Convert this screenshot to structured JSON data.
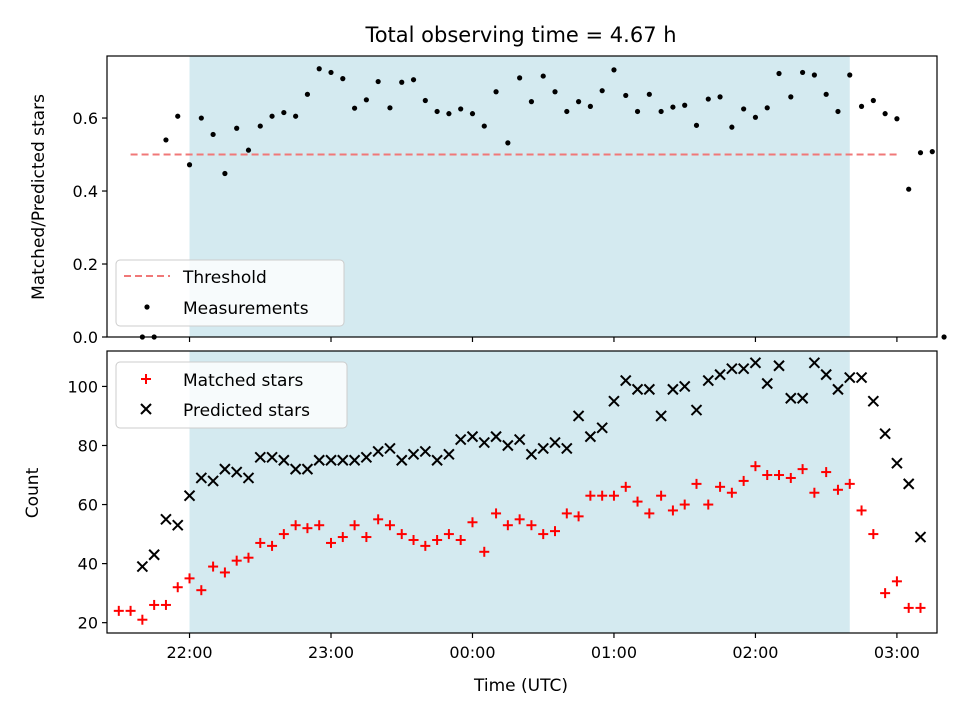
{
  "chart_data": [
    {
      "type": "scatter",
      "title": "Total observing time = 4.67 h",
      "xlabel": "",
      "ylabel": "Matched/Predicted stars",
      "ylim": [
        0,
        0.77
      ],
      "xlim": [
        "21:25",
        "03:17"
      ],
      "yticks": [
        "0.0",
        "0.2",
        "0.4",
        "0.6"
      ],
      "grid": false,
      "legend_position": "lower-left",
      "shaded_interval": [
        "22:00",
        "02:40"
      ],
      "shaded_color": "#d4eaf0",
      "threshold_line": {
        "name": "Threshold",
        "y": 0.5,
        "x_range": [
          "21:35",
          "03:00"
        ],
        "color": "#f07878"
      },
      "series": [
        {
          "name": "Measurements",
          "color": "#000000",
          "points": [
            [
              "21:40",
              0.0
            ],
            [
              "21:45",
              0.0
            ],
            [
              "21:50",
              0.54
            ],
            [
              "21:55",
              0.605
            ],
            [
              "22:00",
              0.472
            ],
            [
              "22:05",
              0.6
            ],
            [
              "22:10",
              0.555
            ],
            [
              "22:15",
              0.448
            ],
            [
              "22:20",
              0.572
            ],
            [
              "22:25",
              0.512
            ],
            [
              "22:30",
              0.578
            ],
            [
              "22:35",
              0.605
            ],
            [
              "22:40",
              0.615
            ],
            [
              "22:45",
              0.605
            ],
            [
              "22:50",
              0.665
            ],
            [
              "22:55",
              0.735
            ],
            [
              "23:00",
              0.725
            ],
            [
              "23:05",
              0.708
            ],
            [
              "23:10",
              0.627
            ],
            [
              "23:15",
              0.65
            ],
            [
              "23:20",
              0.7
            ],
            [
              "23:25",
              0.628
            ],
            [
              "23:30",
              0.698
            ],
            [
              "23:35",
              0.705
            ],
            [
              "23:40",
              0.648
            ],
            [
              "23:45",
              0.618
            ],
            [
              "23:50",
              0.612
            ],
            [
              "23:55",
              0.625
            ],
            [
              "00:00",
              0.612
            ],
            [
              "00:05",
              0.578
            ],
            [
              "00:10",
              0.672
            ],
            [
              "00:15",
              0.532
            ],
            [
              "00:20",
              0.71
            ],
            [
              "00:25",
              0.645
            ],
            [
              "00:30",
              0.715
            ],
            [
              "00:35",
              0.672
            ],
            [
              "00:40",
              0.618
            ],
            [
              "00:45",
              0.645
            ],
            [
              "00:50",
              0.632
            ],
            [
              "00:55",
              0.675
            ],
            [
              "01:00",
              0.732
            ],
            [
              "01:05",
              0.662
            ],
            [
              "01:10",
              0.618
            ],
            [
              "01:15",
              0.665
            ],
            [
              "01:20",
              0.618
            ],
            [
              "01:25",
              0.63
            ],
            [
              "01:30",
              0.635
            ],
            [
              "01:35",
              0.58
            ],
            [
              "01:40",
              0.652
            ],
            [
              "01:45",
              0.658
            ],
            [
              "01:50",
              0.575
            ],
            [
              "01:55",
              0.625
            ],
            [
              "02:00",
              0.602
            ],
            [
              "02:05",
              0.628
            ],
            [
              "02:10",
              0.722
            ],
            [
              "02:15",
              0.658
            ],
            [
              "02:20",
              0.725
            ],
            [
              "02:25",
              0.718
            ],
            [
              "02:30",
              0.665
            ],
            [
              "02:35",
              0.618
            ],
            [
              "02:40",
              0.718
            ],
            [
              "02:45",
              0.632
            ],
            [
              "02:50",
              0.648
            ],
            [
              "02:55",
              0.612
            ],
            [
              "03:00",
              0.598
            ],
            [
              "03:05",
              0.405
            ],
            [
              "03:10",
              0.505
            ],
            [
              "03:15",
              0.508
            ],
            [
              "03:20",
              0.0
            ]
          ]
        }
      ]
    },
    {
      "type": "scatter",
      "title": "",
      "xlabel": "Time (UTC)",
      "ylabel": "Count",
      "ylim": [
        16.5,
        112
      ],
      "xlim": [
        "21:25",
        "03:17"
      ],
      "xticks": [
        "22:00",
        "23:00",
        "00:00",
        "01:00",
        "02:00",
        "03:00"
      ],
      "yticks": [
        "20",
        "40",
        "60",
        "80",
        "100"
      ],
      "grid": false,
      "legend_position": "upper-left",
      "shaded_interval": [
        "22:00",
        "02:40"
      ],
      "shaded_color": "#d4eaf0",
      "series": [
        {
          "name": "Matched stars",
          "color": "#ff0000",
          "marker": "plus",
          "points": [
            [
              "21:30",
              24
            ],
            [
              "21:35",
              24
            ],
            [
              "21:40",
              21
            ],
            [
              "21:45",
              26
            ],
            [
              "21:50",
              26
            ],
            [
              "21:55",
              32
            ],
            [
              "22:00",
              35
            ],
            [
              "22:05",
              31
            ],
            [
              "22:10",
              39
            ],
            [
              "22:15",
              37
            ],
            [
              "22:20",
              41
            ],
            [
              "22:25",
              42
            ],
            [
              "22:30",
              47
            ],
            [
              "22:35",
              46
            ],
            [
              "22:40",
              50
            ],
            [
              "22:45",
              53
            ],
            [
              "22:50",
              52
            ],
            [
              "22:55",
              53
            ],
            [
              "23:00",
              47
            ],
            [
              "23:05",
              49
            ],
            [
              "23:10",
              53
            ],
            [
              "23:15",
              49
            ],
            [
              "23:20",
              55
            ],
            [
              "23:25",
              53
            ],
            [
              "23:30",
              50
            ],
            [
              "23:35",
              48
            ],
            [
              "23:40",
              46
            ],
            [
              "23:45",
              48
            ],
            [
              "23:50",
              50
            ],
            [
              "23:55",
              48
            ],
            [
              "00:00",
              54
            ],
            [
              "00:05",
              44
            ],
            [
              "00:10",
              57
            ],
            [
              "00:15",
              53
            ],
            [
              "00:20",
              55
            ],
            [
              "00:25",
              53
            ],
            [
              "00:30",
              50
            ],
            [
              "00:35",
              51
            ],
            [
              "00:40",
              57
            ],
            [
              "00:45",
              56
            ],
            [
              "00:50",
              63
            ],
            [
              "00:55",
              63
            ],
            [
              "01:00",
              63
            ],
            [
              "01:05",
              66
            ],
            [
              "01:10",
              61
            ],
            [
              "01:15",
              57
            ],
            [
              "01:20",
              63
            ],
            [
              "01:25",
              58
            ],
            [
              "01:30",
              60
            ],
            [
              "01:35",
              67
            ],
            [
              "01:40",
              60
            ],
            [
              "01:45",
              66
            ],
            [
              "01:50",
              64
            ],
            [
              "01:55",
              68
            ],
            [
              "02:00",
              73
            ],
            [
              "02:05",
              70
            ],
            [
              "02:10",
              70
            ],
            [
              "02:15",
              69
            ],
            [
              "02:20",
              72
            ],
            [
              "02:25",
              64
            ],
            [
              "02:30",
              71
            ],
            [
              "02:35",
              65
            ],
            [
              "02:40",
              67
            ],
            [
              "02:45",
              58
            ],
            [
              "02:50",
              50
            ],
            [
              "02:55",
              30
            ],
            [
              "03:00",
              34
            ],
            [
              "03:05",
              25
            ],
            [
              "03:10",
              25
            ]
          ]
        },
        {
          "name": "Predicted stars",
          "color": "#000000",
          "marker": "x",
          "points": [
            [
              "21:40",
              39
            ],
            [
              "21:45",
              43
            ],
            [
              "21:50",
              55
            ],
            [
              "21:55",
              53
            ],
            [
              "22:00",
              63
            ],
            [
              "22:05",
              69
            ],
            [
              "22:10",
              68
            ],
            [
              "22:15",
              72
            ],
            [
              "22:20",
              71
            ],
            [
              "22:25",
              69
            ],
            [
              "22:30",
              76
            ],
            [
              "22:35",
              76
            ],
            [
              "22:40",
              75
            ],
            [
              "22:45",
              72
            ],
            [
              "22:50",
              72
            ],
            [
              "22:55",
              75
            ],
            [
              "23:00",
              75
            ],
            [
              "23:05",
              75
            ],
            [
              "23:10",
              75
            ],
            [
              "23:15",
              76
            ],
            [
              "23:20",
              78
            ],
            [
              "23:25",
              79
            ],
            [
              "23:30",
              75
            ],
            [
              "23:35",
              77
            ],
            [
              "23:40",
              78
            ],
            [
              "23:45",
              75
            ],
            [
              "23:50",
              77
            ],
            [
              "23:55",
              82
            ],
            [
              "00:00",
              83
            ],
            [
              "00:05",
              81
            ],
            [
              "00:10",
              83
            ],
            [
              "00:15",
              80
            ],
            [
              "00:20",
              82
            ],
            [
              "00:25",
              77
            ],
            [
              "00:30",
              79
            ],
            [
              "00:35",
              81
            ],
            [
              "00:40",
              79
            ],
            [
              "00:45",
              90
            ],
            [
              "00:50",
              83
            ],
            [
              "00:55",
              86
            ],
            [
              "01:00",
              95
            ],
            [
              "01:05",
              102
            ],
            [
              "01:10",
              99
            ],
            [
              "01:15",
              99
            ],
            [
              "01:20",
              90
            ],
            [
              "01:25",
              99
            ],
            [
              "01:30",
              100
            ],
            [
              "01:35",
              92
            ],
            [
              "01:40",
              102
            ],
            [
              "01:45",
              104
            ],
            [
              "01:50",
              106
            ],
            [
              "01:55",
              106
            ],
            [
              "02:00",
              108
            ],
            [
              "02:05",
              101
            ],
            [
              "02:10",
              107
            ],
            [
              "02:15",
              96
            ],
            [
              "02:20",
              96
            ],
            [
              "02:25",
              108
            ],
            [
              "02:30",
              104
            ],
            [
              "02:35",
              99
            ],
            [
              "02:40",
              103
            ],
            [
              "02:45",
              103
            ],
            [
              "02:50",
              95
            ],
            [
              "02:55",
              84
            ],
            [
              "03:00",
              74
            ],
            [
              "03:05",
              67
            ],
            [
              "03:10",
              49
            ]
          ]
        }
      ]
    }
  ]
}
